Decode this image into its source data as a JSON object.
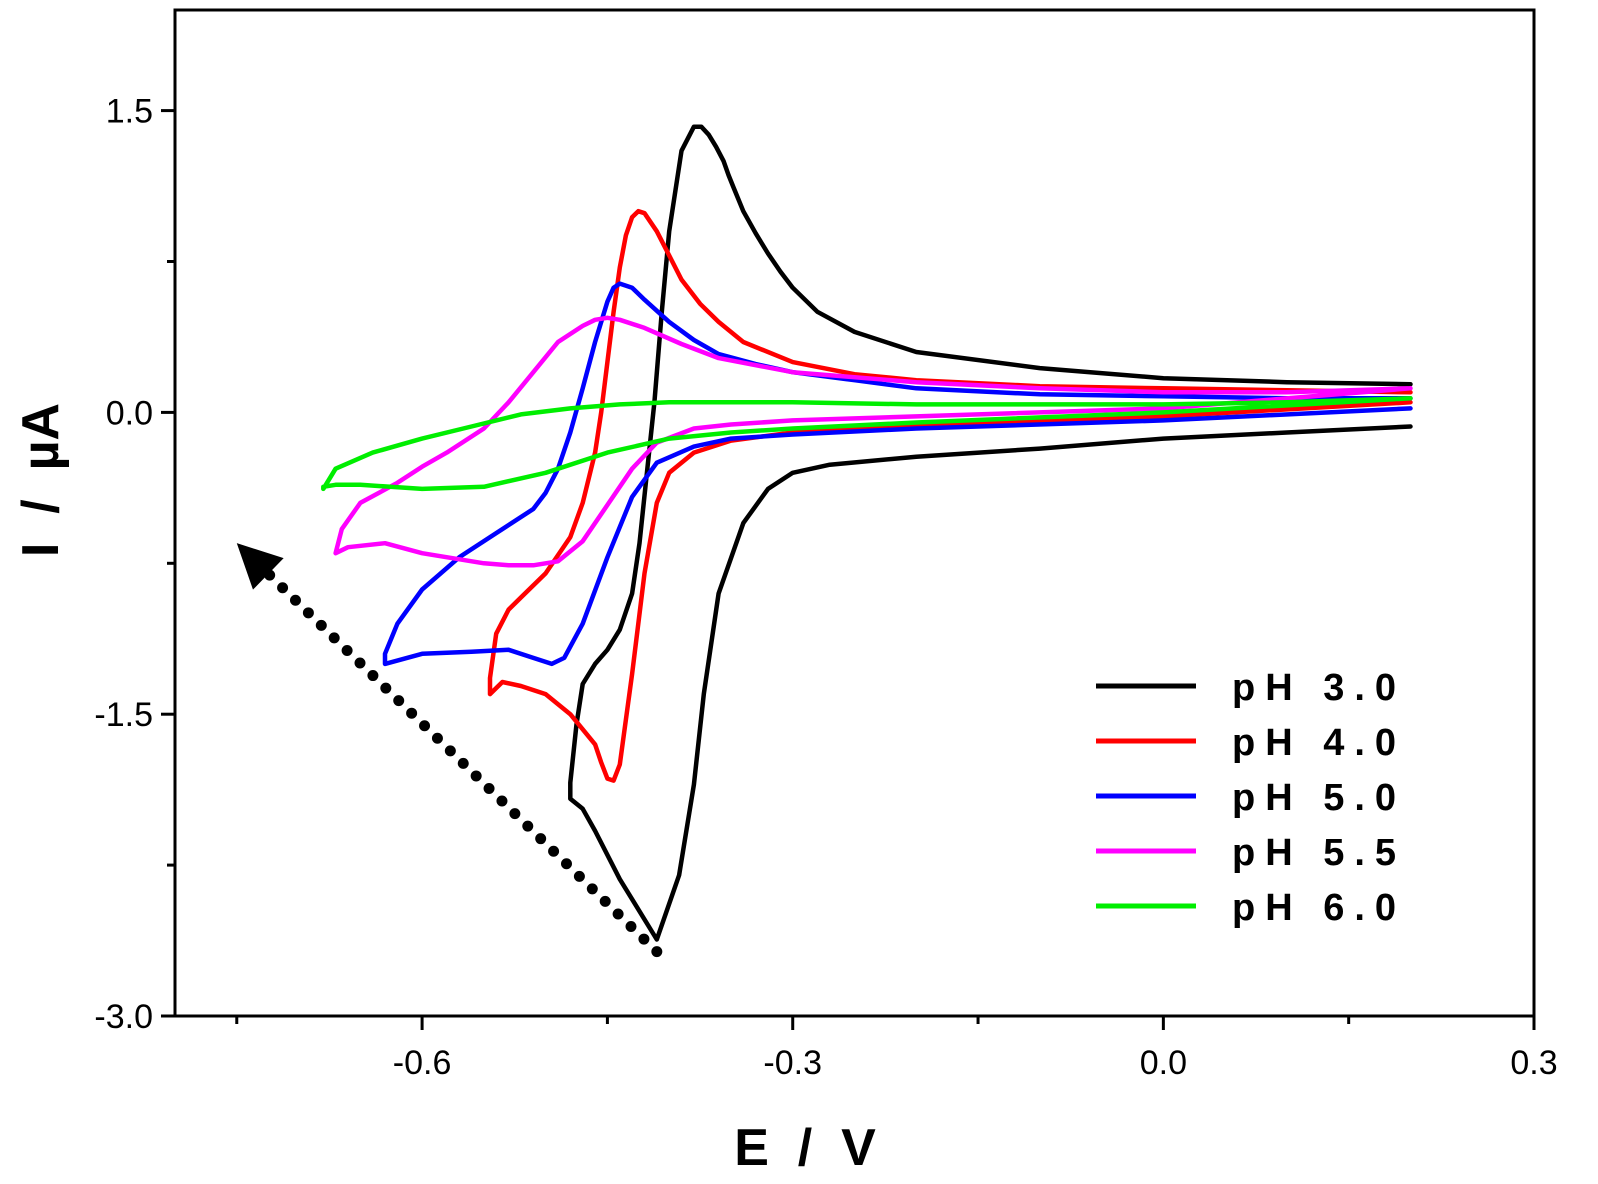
{
  "chart_data": {
    "type": "line",
    "title": "",
    "xlabel": "E  /  V",
    "ylabel": "I  /  µA",
    "xlim": [
      -0.8,
      0.3
    ],
    "ylim": [
      -3.0,
      2.0
    ],
    "xticks": [
      -0.6,
      -0.3,
      0.0,
      0.3
    ],
    "xtick_labels": [
      "-0.6",
      "-0.3",
      "0.0",
      "0.3"
    ],
    "xminor": [
      -0.75,
      -0.45,
      -0.15,
      0.15
    ],
    "yticks": [
      -3.0,
      -1.5,
      0.0,
      1.5
    ],
    "ytick_labels": [
      "-3.0",
      "-1.5",
      "0.0",
      "1.5"
    ],
    "yminor": [
      -2.25,
      -0.75,
      0.75
    ],
    "grid": false,
    "legend_position": "bottom-right",
    "annotation": {
      "type": "dotted-arrow",
      "from": [
        -0.41,
        -2.68
      ],
      "to": [
        -0.75,
        -0.65
      ],
      "color": "#000000"
    },
    "series": [
      {
        "name": "pH 3.0",
        "color": "#000000",
        "x": [
          0.2,
          0.1,
          0.0,
          -0.1,
          -0.2,
          -0.27,
          -0.3,
          -0.32,
          -0.34,
          -0.36,
          -0.372,
          -0.38,
          -0.392,
          -0.41,
          -0.44,
          -0.46,
          -0.47,
          -0.48,
          -0.48,
          -0.475,
          -0.47,
          -0.46,
          -0.45,
          -0.44,
          -0.43,
          -0.424,
          -0.418,
          -0.412,
          -0.406,
          -0.4,
          -0.39,
          -0.38,
          -0.374,
          -0.368,
          -0.362,
          -0.356,
          -0.352,
          -0.348,
          -0.34,
          -0.33,
          -0.32,
          -0.31,
          -0.3,
          -0.28,
          -0.25,
          -0.2,
          -0.1,
          0.0,
          0.1,
          0.2
        ],
        "y": [
          -0.07,
          -0.1,
          -0.13,
          -0.18,
          -0.22,
          -0.26,
          -0.3,
          -0.38,
          -0.55,
          -0.9,
          -1.4,
          -1.85,
          -2.3,
          -2.62,
          -2.32,
          -2.08,
          -1.97,
          -1.92,
          -1.84,
          -1.55,
          -1.35,
          -1.25,
          -1.18,
          -1.08,
          -0.9,
          -0.65,
          -0.3,
          0.05,
          0.5,
          0.9,
          1.3,
          1.42,
          1.42,
          1.38,
          1.32,
          1.25,
          1.18,
          1.12,
          1.0,
          0.89,
          0.79,
          0.7,
          0.62,
          0.5,
          0.4,
          0.3,
          0.22,
          0.17,
          0.15,
          0.14
        ]
      },
      {
        "name": "pH 4.0",
        "color": "#ff0000",
        "x": [
          0.2,
          0.0,
          -0.2,
          -0.3,
          -0.35,
          -0.38,
          -0.4,
          -0.41,
          -0.42,
          -0.43,
          -0.44,
          -0.445,
          -0.45,
          -0.455,
          -0.46,
          -0.48,
          -0.5,
          -0.52,
          -0.535,
          -0.545,
          -0.545,
          -0.54,
          -0.53,
          -0.52,
          -0.5,
          -0.48,
          -0.47,
          -0.46,
          -0.455,
          -0.45,
          -0.445,
          -0.44,
          -0.435,
          -0.43,
          -0.425,
          -0.42,
          -0.41,
          -0.4,
          -0.39,
          -0.375,
          -0.36,
          -0.34,
          -0.3,
          -0.25,
          -0.2,
          -0.1,
          0.0,
          0.1,
          0.2
        ],
        "y": [
          0.05,
          -0.02,
          -0.06,
          -0.1,
          -0.14,
          -0.2,
          -0.3,
          -0.45,
          -0.8,
          -1.3,
          -1.75,
          -1.83,
          -1.82,
          -1.74,
          -1.65,
          -1.5,
          -1.4,
          -1.36,
          -1.34,
          -1.4,
          -1.32,
          -1.1,
          -0.98,
          -0.92,
          -0.8,
          -0.62,
          -0.45,
          -0.2,
          0.0,
          0.25,
          0.5,
          0.72,
          0.88,
          0.97,
          1.0,
          0.99,
          0.9,
          0.78,
          0.66,
          0.54,
          0.45,
          0.35,
          0.25,
          0.19,
          0.16,
          0.13,
          0.12,
          0.11,
          0.1
        ]
      },
      {
        "name": "pH 5.0",
        "color": "#0000ff",
        "x": [
          0.2,
          0.0,
          -0.2,
          -0.3,
          -0.35,
          -0.38,
          -0.41,
          -0.43,
          -0.45,
          -0.47,
          -0.485,
          -0.495,
          -0.51,
          -0.53,
          -0.56,
          -0.6,
          -0.63,
          -0.63,
          -0.62,
          -0.6,
          -0.57,
          -0.54,
          -0.51,
          -0.5,
          -0.49,
          -0.48,
          -0.47,
          -0.46,
          -0.45,
          -0.445,
          -0.44,
          -0.43,
          -0.42,
          -0.4,
          -0.38,
          -0.36,
          -0.33,
          -0.3,
          -0.25,
          -0.2,
          -0.1,
          0.0,
          0.1,
          0.2
        ],
        "y": [
          0.02,
          -0.04,
          -0.08,
          -0.11,
          -0.13,
          -0.17,
          -0.25,
          -0.42,
          -0.72,
          -1.05,
          -1.22,
          -1.25,
          -1.22,
          -1.18,
          -1.19,
          -1.2,
          -1.25,
          -1.2,
          -1.05,
          -0.88,
          -0.72,
          -0.6,
          -0.48,
          -0.4,
          -0.28,
          -0.1,
          0.12,
          0.35,
          0.55,
          0.62,
          0.64,
          0.62,
          0.56,
          0.45,
          0.36,
          0.29,
          0.24,
          0.2,
          0.16,
          0.12,
          0.09,
          0.08,
          0.07,
          0.07
        ]
      },
      {
        "name": "pH 5.5",
        "color": "#ff00ff",
        "x": [
          0.2,
          0.0,
          -0.2,
          -0.3,
          -0.35,
          -0.38,
          -0.41,
          -0.43,
          -0.45,
          -0.47,
          -0.49,
          -0.51,
          -0.53,
          -0.55,
          -0.6,
          -0.63,
          -0.66,
          -0.67,
          -0.665,
          -0.65,
          -0.62,
          -0.6,
          -0.58,
          -0.55,
          -0.53,
          -0.51,
          -0.49,
          -0.47,
          -0.46,
          -0.45,
          -0.44,
          -0.42,
          -0.39,
          -0.36,
          -0.3,
          -0.2,
          -0.1,
          0.0,
          0.1,
          0.2
        ],
        "y": [
          0.12,
          0.02,
          -0.02,
          -0.04,
          -0.06,
          -0.08,
          -0.15,
          -0.28,
          -0.46,
          -0.64,
          -0.74,
          -0.76,
          -0.76,
          -0.75,
          -0.7,
          -0.65,
          -0.67,
          -0.7,
          -0.58,
          -0.45,
          -0.35,
          -0.27,
          -0.2,
          -0.08,
          0.05,
          0.2,
          0.35,
          0.43,
          0.46,
          0.47,
          0.46,
          0.42,
          0.34,
          0.27,
          0.2,
          0.15,
          0.12,
          0.1,
          0.1,
          0.12
        ]
      },
      {
        "name": "pH 6.0",
        "color": "#00ee00",
        "x": [
          0.2,
          0.0,
          -0.2,
          -0.3,
          -0.35,
          -0.4,
          -0.45,
          -0.5,
          -0.55,
          -0.6,
          -0.65,
          -0.67,
          -0.68,
          -0.68,
          -0.67,
          -0.64,
          -0.6,
          -0.56,
          -0.52,
          -0.48,
          -0.44,
          -0.4,
          -0.3,
          -0.2,
          -0.1,
          0.0,
          0.1,
          0.2
        ],
        "y": [
          0.07,
          0.0,
          -0.05,
          -0.08,
          -0.1,
          -0.13,
          -0.2,
          -0.3,
          -0.37,
          -0.38,
          -0.36,
          -0.36,
          -0.37,
          -0.38,
          -0.28,
          -0.2,
          -0.13,
          -0.07,
          -0.01,
          0.02,
          0.04,
          0.05,
          0.05,
          0.04,
          0.04,
          0.04,
          0.05,
          0.07
        ]
      }
    ]
  }
}
